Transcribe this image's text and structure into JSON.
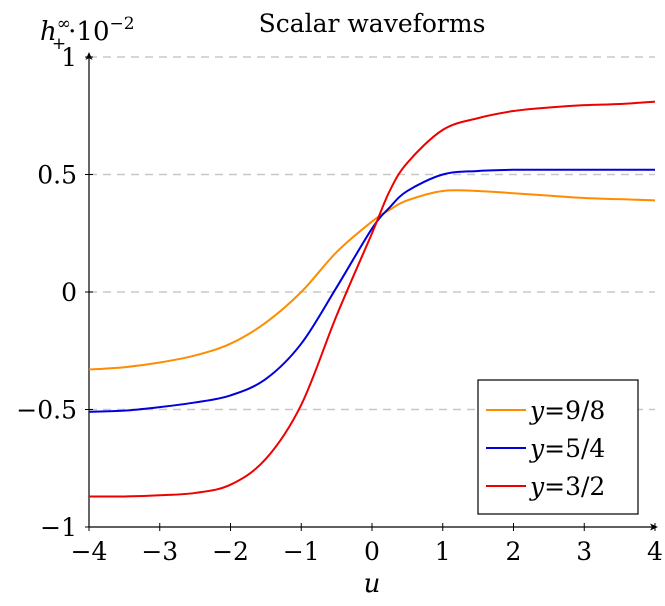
{
  "chart_data": {
    "type": "line",
    "title": "Scalar waveforms",
    "xlabel": "u",
    "ylabel": "h∞₊·10⁻²",
    "ylabel_parts": {
      "base": "h",
      "sup": "∞",
      "sub": "+",
      "tail": "·10",
      "tail_sup": "−2"
    },
    "xlim": [
      -4,
      4
    ],
    "ylim": [
      -1,
      1
    ],
    "x_ticks": [
      -4,
      -3,
      -2,
      -1,
      0,
      1,
      2,
      3,
      4
    ],
    "x_tick_labels": [
      "−4",
      "−3",
      "−2",
      "−1",
      "0",
      "1",
      "2",
      "3",
      "4"
    ],
    "y_ticks": [
      -1,
      -0.5,
      0,
      0.5,
      1
    ],
    "y_tick_labels": [
      "−1",
      "−0.5",
      "0",
      "0.5",
      "1"
    ],
    "grid": "horizontal dashed",
    "legend_position": "bottom-right",
    "x": [
      -4,
      -3.5,
      -3,
      -2.5,
      -2,
      -1.5,
      -1,
      -0.5,
      0,
      0.25,
      0.5,
      1,
      1.5,
      2,
      2.5,
      3,
      3.5,
      4
    ],
    "series": [
      {
        "name": "y=9/8",
        "color": "#ff8c00",
        "values": [
          -0.33,
          -0.32,
          -0.3,
          -0.27,
          -0.22,
          -0.13,
          0.0,
          0.17,
          0.3,
          0.35,
          0.39,
          0.43,
          0.43,
          0.42,
          0.41,
          0.4,
          0.395,
          0.39
        ]
      },
      {
        "name": "y=5/4",
        "color": "#0000dd",
        "values": [
          -0.51,
          -0.505,
          -0.49,
          -0.47,
          -0.44,
          -0.37,
          -0.22,
          0.02,
          0.27,
          0.36,
          0.43,
          0.5,
          0.515,
          0.52,
          0.52,
          0.52,
          0.52,
          0.52
        ]
      },
      {
        "name": "y=3/2",
        "color": "#ee0000",
        "values": [
          -0.87,
          -0.87,
          -0.865,
          -0.855,
          -0.82,
          -0.71,
          -0.48,
          -0.1,
          0.25,
          0.43,
          0.55,
          0.69,
          0.74,
          0.77,
          0.785,
          0.795,
          0.8,
          0.81
        ]
      }
    ]
  }
}
